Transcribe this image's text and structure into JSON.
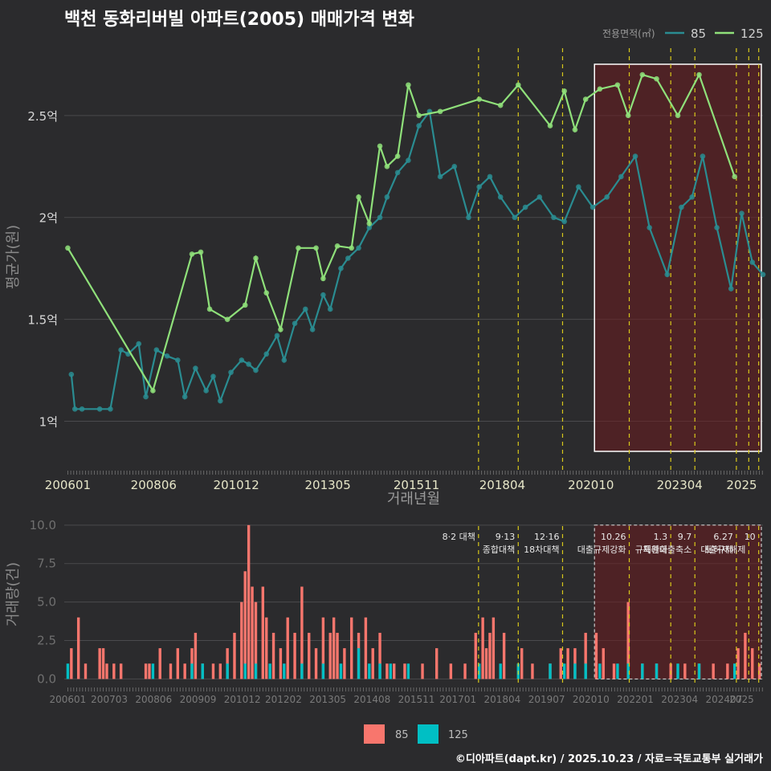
{
  "title": "백천 동화리버빌 아파트(2005) 매매가격 변화",
  "credit": "©디아파트(dapt.kr) / 2025.10.23 / 자료=국토교통부 실거래가",
  "colors": {
    "bg": "#2b2b2d",
    "grid": "#4a4a4d",
    "s85": "#2a8c91",
    "s125": "#8fe07a",
    "bar85": "#f8766d",
    "bar125": "#00bfc4",
    "vline": "#d8c81b",
    "shade": "#6b1b1f"
  },
  "chart_data": [
    {
      "type": "line",
      "title": "백천 동화리버빌 아파트(2005) 매매가격 변화",
      "xlabel": "거래년월",
      "ylabel": "평균가(원)",
      "ylim": [
        0.75,
        2.85
      ],
      "yticks": [
        1,
        1.5,
        2,
        2.5
      ],
      "ytick_labels": [
        "1억",
        "1.5억",
        "2억",
        "2.5억"
      ],
      "xticks": [
        2006.0,
        2008.42,
        2010.75,
        2013.33,
        2015.83,
        2018.25,
        2020.75,
        2023.25,
        2025.0
      ],
      "xtick_labels": [
        "200601",
        "200806",
        "201012",
        "201305",
        "201511",
        "201804",
        "202010",
        "202304",
        "2025"
      ],
      "xlim": [
        2005.9,
        2025.6
      ],
      "legend": {
        "title": "전용면적(㎡)",
        "entries": [
          "85",
          "125"
        ],
        "position": "top-right"
      },
      "highlight_range": [
        2020.85,
        2025.6
      ],
      "policy_lines": [
        2017.58,
        2018.7,
        2019.95,
        2021.83,
        2023.0,
        2023.68,
        2024.85,
        2025.2,
        2025.48
      ],
      "series": [
        {
          "name": "85",
          "x": [
            2006.1,
            2006.2,
            2006.4,
            2006.9,
            2007.2,
            2007.5,
            2007.7,
            2008.0,
            2008.2,
            2008.5,
            2008.8,
            2009.1,
            2009.3,
            2009.6,
            2009.9,
            2010.1,
            2010.3,
            2010.6,
            2010.9,
            2011.1,
            2011.3,
            2011.6,
            2011.9,
            2012.1,
            2012.4,
            2012.7,
            2012.9,
            2013.2,
            2013.4,
            2013.7,
            2013.9,
            2014.2,
            2014.5,
            2014.8,
            2015.0,
            2015.3,
            2015.6,
            2015.9,
            2016.2,
            2016.5,
            2016.9,
            2017.3,
            2017.6,
            2017.9,
            2018.2,
            2018.6,
            2018.9,
            2019.3,
            2019.7,
            2020.0,
            2020.4,
            2020.8,
            2021.2,
            2021.6,
            2022.0,
            2022.4,
            2022.9,
            2023.3,
            2023.6,
            2023.9,
            2024.3,
            2024.7,
            2025.0,
            2025.3,
            2025.6
          ],
          "values": [
            1.23,
            1.06,
            1.06,
            1.06,
            1.06,
            1.35,
            1.33,
            1.38,
            1.12,
            1.35,
            1.32,
            1.3,
            1.12,
            1.26,
            1.15,
            1.22,
            1.1,
            1.24,
            1.3,
            1.28,
            1.25,
            1.33,
            1.42,
            1.3,
            1.48,
            1.55,
            1.45,
            1.62,
            1.55,
            1.75,
            1.8,
            1.85,
            1.95,
            2.0,
            2.1,
            2.22,
            2.28,
            2.45,
            2.52,
            2.2,
            2.25,
            2.0,
            2.15,
            2.2,
            2.1,
            2.0,
            2.05,
            2.1,
            2.0,
            1.98,
            2.15,
            2.05,
            2.1,
            2.2,
            2.3,
            1.95,
            1.72,
            2.05,
            2.1,
            2.3,
            1.95,
            1.65,
            2.02,
            1.78,
            1.72
          ]
        },
        {
          "name": "125",
          "x": [
            2006.0,
            2008.4,
            2009.5,
            2009.75,
            2010.0,
            2010.5,
            2011.0,
            2011.3,
            2011.6,
            2012.0,
            2012.5,
            2013.0,
            2013.2,
            2013.6,
            2014.0,
            2014.2,
            2014.5,
            2014.8,
            2015.0,
            2015.3,
            2015.6,
            2015.9,
            2016.5,
            2017.6,
            2018.2,
            2018.7,
            2019.6,
            2020.0,
            2020.3,
            2020.6,
            2021.0,
            2021.5,
            2021.8,
            2022.2,
            2022.6,
            2023.2,
            2023.8,
            2024.8
          ],
          "values": [
            1.85,
            1.15,
            1.82,
            1.83,
            1.55,
            1.5,
            1.57,
            1.8,
            1.63,
            1.45,
            1.85,
            1.85,
            1.7,
            1.86,
            1.85,
            2.1,
            1.97,
            2.35,
            2.25,
            2.3,
            2.65,
            2.5,
            2.52,
            2.58,
            2.55,
            2.65,
            2.45,
            2.62,
            2.43,
            2.58,
            2.63,
            2.65,
            2.5,
            2.7,
            2.68,
            2.5,
            2.7,
            2.2
          ]
        }
      ]
    },
    {
      "type": "bar",
      "title": "",
      "xlabel": "",
      "ylabel": "거래량(건)",
      "ylim": [
        -0.5,
        10.2
      ],
      "yticks": [
        0,
        2.5,
        5,
        7.5,
        10
      ],
      "ytick_labels": [
        "0.0",
        "2.5",
        "5.0",
        "7.5",
        "10.0"
      ],
      "xticks": [
        2006.0,
        2007.17,
        2008.42,
        2009.67,
        2010.92,
        2012.08,
        2013.33,
        2014.58,
        2015.83,
        2017.0,
        2018.25,
        2019.5,
        2020.75,
        2022.0,
        2023.25,
        2024.5,
        2025.0
      ],
      "xtick_labels": [
        "200601",
        "200703",
        "200806",
        "200909",
        "201012",
        "201202",
        "201305",
        "201408",
        "201511",
        "201701",
        "201804",
        "201907",
        "202010",
        "202201",
        "202304",
        "202407",
        "2025"
      ],
      "xlim": [
        2005.9,
        2025.6
      ],
      "highlight_range": [
        2020.85,
        2025.6
      ],
      "annotations": [
        {
          "x": 2017.58,
          "lines": [
            "8·2 대책"
          ]
        },
        {
          "x": 2018.7,
          "lines": [
            "9·13",
            "종합대책"
          ]
        },
        {
          "x": 2019.95,
          "lines": [
            "12·16",
            "18차대책"
          ]
        },
        {
          "x": 2021.83,
          "lines": [
            "10.26",
            "대출규제강화"
          ]
        },
        {
          "x": 2023.0,
          "lines": [
            "1.3",
            "규제완화"
          ]
        },
        {
          "x": 2023.68,
          "lines": [
            "9.7",
            "특례대출축소"
          ]
        },
        {
          "x": 2024.85,
          "lines": [
            "6.27",
            "대출규제"
          ]
        },
        {
          "x": 2025.2,
          "lines": [
            "",
            "토허제해제"
          ]
        },
        {
          "x": 2025.48,
          "lines": [
            "10",
            ""
          ]
        }
      ],
      "series": [
        {
          "name": "85",
          "x": [
            2006.1,
            2006.3,
            2006.5,
            2006.9,
            2007.0,
            2007.1,
            2007.3,
            2007.5,
            2008.2,
            2008.3,
            2008.6,
            2008.9,
            2009.1,
            2009.3,
            2009.5,
            2009.6,
            2009.8,
            2010.1,
            2010.3,
            2010.5,
            2010.7,
            2010.9,
            2011.0,
            2011.1,
            2011.2,
            2011.3,
            2011.5,
            2011.6,
            2011.8,
            2012.0,
            2012.2,
            2012.4,
            2012.6,
            2012.8,
            2013.0,
            2013.2,
            2013.4,
            2013.5,
            2013.6,
            2013.8,
            2014.0,
            2014.2,
            2014.4,
            2014.6,
            2014.8,
            2015.0,
            2015.2,
            2015.5,
            2016.0,
            2016.4,
            2016.8,
            2017.2,
            2017.5,
            2017.7,
            2017.8,
            2017.9,
            2018.0,
            2018.3,
            2018.8,
            2019.1,
            2019.6,
            2019.9,
            2020.1,
            2020.3,
            2020.6,
            2020.9,
            2021.1,
            2021.4,
            2021.8,
            2022.2,
            2022.6,
            2023.0,
            2023.4,
            2023.8,
            2024.2,
            2024.6,
            2024.9,
            2025.1,
            2025.3,
            2025.5
          ],
          "values": [
            2,
            4,
            1,
            2,
            2,
            1,
            1,
            1,
            1,
            1,
            2,
            1,
            2,
            1,
            2,
            3,
            1,
            1,
            1,
            2,
            3,
            5,
            7,
            10,
            6,
            5,
            6,
            4,
            3,
            2,
            4,
            3,
            6,
            3,
            2,
            4,
            3,
            4,
            3,
            2,
            4,
            3,
            4,
            2,
            3,
            1,
            1,
            1,
            1,
            2,
            1,
            1,
            3,
            4,
            2,
            3,
            4,
            3,
            2,
            1,
            1,
            2,
            2,
            2,
            3,
            3,
            2,
            1,
            5,
            1,
            1,
            1,
            1,
            1,
            1,
            1,
            2,
            3,
            2,
            1
          ]
        },
        {
          "name": "125",
          "x": [
            2006.0,
            2008.4,
            2009.5,
            2009.8,
            2010.5,
            2011.0,
            2011.3,
            2011.7,
            2012.1,
            2012.6,
            2013.2,
            2013.7,
            2014.2,
            2014.5,
            2014.8,
            2015.1,
            2015.6,
            2017.6,
            2018.2,
            2018.7,
            2019.6,
            2020.0,
            2020.3,
            2020.6,
            2021.0,
            2021.5,
            2021.8,
            2022.2,
            2022.6,
            2023.2,
            2023.8,
            2024.8
          ],
          "values": [
            1,
            1,
            1,
            1,
            1,
            1,
            1,
            1,
            1,
            1,
            1,
            1,
            2,
            1,
            1,
            1,
            1,
            1,
            1,
            1,
            1,
            1,
            1,
            1,
            1,
            1,
            1,
            1,
            1,
            1,
            1,
            1
          ]
        }
      ],
      "legend": {
        "entries": [
          "85",
          "125"
        ],
        "position": "bottom"
      }
    }
  ]
}
